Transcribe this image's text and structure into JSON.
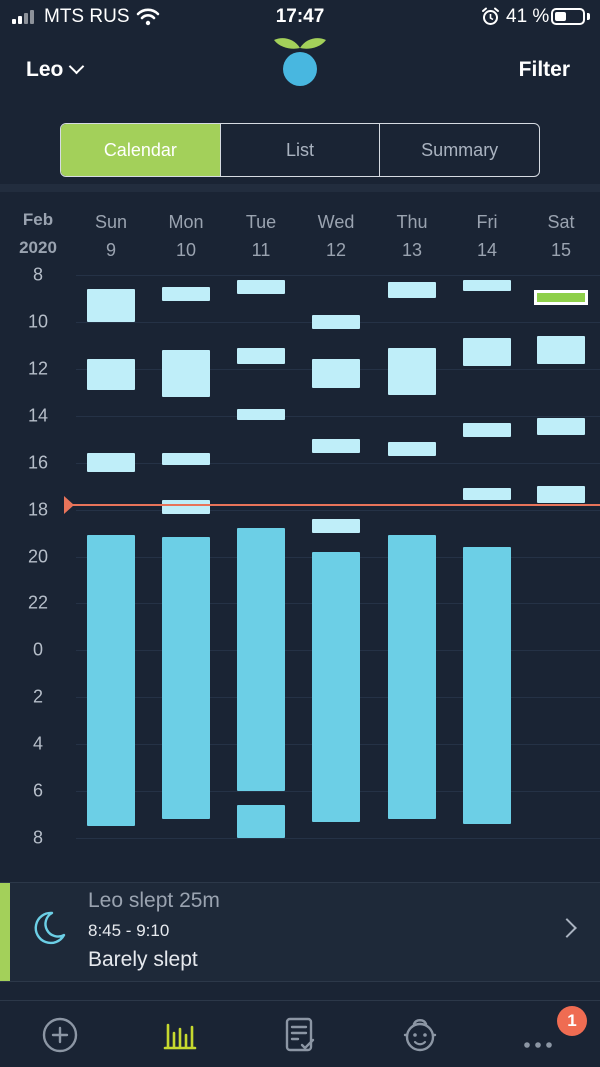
{
  "status_bar": {
    "carrier": "MTS RUS",
    "time": "17:47",
    "battery": "41 %"
  },
  "header": {
    "child_name": "Leo",
    "filter_label": "Filter"
  },
  "tabs": [
    {
      "label": "Calendar",
      "active": true
    },
    {
      "label": "List",
      "active": false
    },
    {
      "label": "Summary",
      "active": false
    }
  ],
  "calendar": {
    "month": "Feb",
    "year": "2020",
    "days": [
      {
        "name": "Sun",
        "date": "9"
      },
      {
        "name": "Mon",
        "date": "10"
      },
      {
        "name": "Tue",
        "date": "11"
      },
      {
        "name": "Wed",
        "date": "12"
      },
      {
        "name": "Thu",
        "date": "13"
      },
      {
        "name": "Fri",
        "date": "14"
      },
      {
        "name": "Sat",
        "date": "15"
      }
    ],
    "y_labels": [
      "8",
      "10",
      "12",
      "14",
      "16",
      "18",
      "20",
      "22",
      "0",
      "2",
      "4",
      "6",
      "8"
    ],
    "now_hour": 17.78,
    "sleep_blocks": [
      {
        "day": 0,
        "start": 8.6,
        "end": 10.0,
        "kind": "nap"
      },
      {
        "day": 0,
        "start": 11.6,
        "end": 12.9,
        "kind": "nap"
      },
      {
        "day": 0,
        "start": 15.6,
        "end": 16.4,
        "kind": "nap"
      },
      {
        "day": 0,
        "start": 19.1,
        "end": 31.5,
        "kind": "night"
      },
      {
        "day": 1,
        "start": 8.5,
        "end": 9.1,
        "kind": "nap"
      },
      {
        "day": 1,
        "start": 11.2,
        "end": 13.2,
        "kind": "nap"
      },
      {
        "day": 1,
        "start": 15.6,
        "end": 16.1,
        "kind": "nap"
      },
      {
        "day": 1,
        "start": 17.6,
        "end": 18.2,
        "kind": "nap"
      },
      {
        "day": 1,
        "start": 19.15,
        "end": 31.2,
        "kind": "night"
      },
      {
        "day": 2,
        "start": 8.2,
        "end": 8.8,
        "kind": "nap"
      },
      {
        "day": 2,
        "start": 11.1,
        "end": 11.8,
        "kind": "nap"
      },
      {
        "day": 2,
        "start": 13.7,
        "end": 14.2,
        "kind": "nap"
      },
      {
        "day": 2,
        "start": 18.8,
        "end": 30.0,
        "kind": "night"
      },
      {
        "day": 2,
        "start": 30.6,
        "end": 32.0,
        "kind": "night"
      },
      {
        "day": 3,
        "start": 9.7,
        "end": 10.3,
        "kind": "nap"
      },
      {
        "day": 3,
        "start": 11.6,
        "end": 12.8,
        "kind": "nap"
      },
      {
        "day": 3,
        "start": 15.0,
        "end": 15.6,
        "kind": "nap"
      },
      {
        "day": 3,
        "start": 18.4,
        "end": 19.0,
        "kind": "nap"
      },
      {
        "day": 3,
        "start": 19.8,
        "end": 31.3,
        "kind": "night"
      },
      {
        "day": 4,
        "start": 8.3,
        "end": 9.0,
        "kind": "nap"
      },
      {
        "day": 4,
        "start": 11.1,
        "end": 13.1,
        "kind": "nap"
      },
      {
        "day": 4,
        "start": 15.1,
        "end": 15.7,
        "kind": "nap"
      },
      {
        "day": 4,
        "start": 19.1,
        "end": 31.2,
        "kind": "night"
      },
      {
        "day": 5,
        "start": 8.2,
        "end": 8.7,
        "kind": "nap"
      },
      {
        "day": 5,
        "start": 10.7,
        "end": 11.9,
        "kind": "nap"
      },
      {
        "day": 5,
        "start": 14.3,
        "end": 14.9,
        "kind": "nap"
      },
      {
        "day": 5,
        "start": 17.1,
        "end": 17.6,
        "kind": "nap"
      },
      {
        "day": 5,
        "start": 19.6,
        "end": 31.4,
        "kind": "night"
      },
      {
        "day": 6,
        "start": 10.6,
        "end": 11.8,
        "kind": "nap"
      },
      {
        "day": 6,
        "start": 14.1,
        "end": 14.8,
        "kind": "nap"
      },
      {
        "day": 6,
        "start": 17.0,
        "end": 17.7,
        "kind": "nap"
      },
      {
        "day": 6,
        "start": 8.75,
        "end": 9.17,
        "kind": "live"
      }
    ]
  },
  "selected_entry": {
    "title": "Leo slept 25m",
    "time_range": "8:45 - 9:10",
    "quality": "Barely slept"
  },
  "tab_bar": {
    "notification_count": "1"
  },
  "colors": {
    "accent": "#a3d05a",
    "nap": "#bfeef9",
    "night": "#6ccfe6",
    "now_line": "#e8745a",
    "background": "#1a2434"
  }
}
